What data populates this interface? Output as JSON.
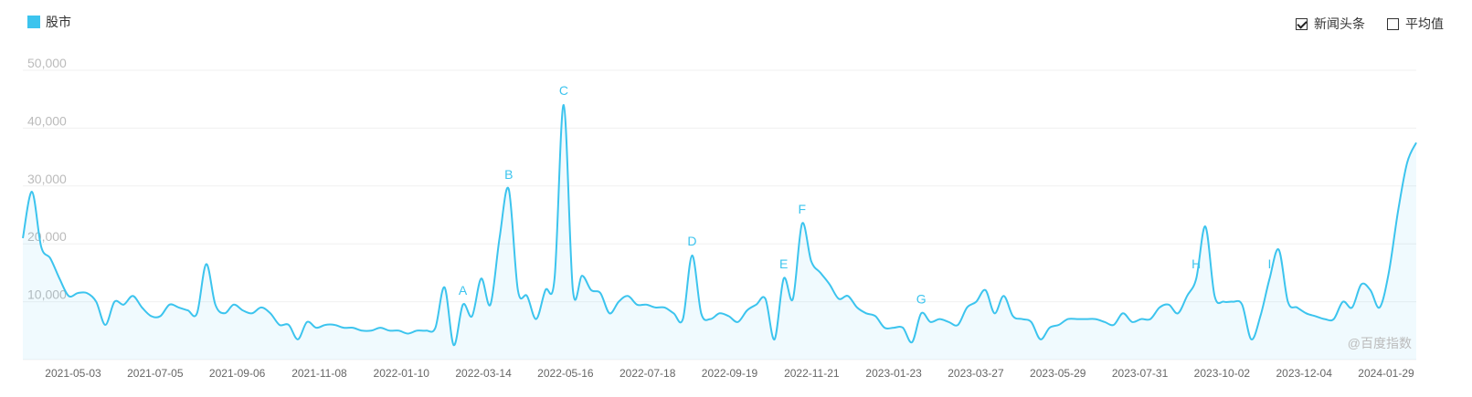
{
  "legend": {
    "label": "股市",
    "color": "#3cc4ee"
  },
  "options": [
    {
      "label": "新闻头条",
      "checked": true
    },
    {
      "label": "平均值",
      "checked": false
    }
  ],
  "watermark": "@百度指数",
  "chart_data": {
    "type": "area",
    "series": [
      {
        "name": "股市",
        "color": "#3cc4ee",
        "values": [
          21000,
          29000,
          19500,
          17500,
          14000,
          11000,
          11500,
          11500,
          10000,
          6000,
          10000,
          9500,
          11000,
          9000,
          7500,
          7500,
          9500,
          9000,
          8500,
          8000,
          16500,
          9500,
          8000,
          9500,
          8500,
          8000,
          9000,
          8000,
          6000,
          6000,
          3500,
          6500,
          5500,
          6000,
          6000,
          5500,
          5500,
          5000,
          5000,
          5500,
          5000,
          5000,
          4500,
          5000,
          5000,
          5500,
          12500,
          2500,
          9500,
          7500,
          14000,
          9500,
          21000,
          29500,
          12000,
          11000,
          7000,
          12000,
          14000,
          44000,
          12000,
          14500,
          12000,
          11500,
          8000,
          10000,
          11000,
          9500,
          9500,
          9000,
          9000,
          8000,
          7000,
          18000,
          8000,
          7000,
          8000,
          7500,
          6500,
          8500,
          9500,
          10500,
          3500,
          14000,
          10500,
          23500,
          17000,
          15000,
          13000,
          10500,
          11000,
          9000,
          8000,
          7500,
          5500,
          5500,
          5500,
          3000,
          8000,
          6500,
          7000,
          6500,
          6000,
          9000,
          10000,
          12000,
          8000,
          11000,
          7500,
          7000,
          6500,
          3500,
          5500,
          6000,
          7000,
          7000,
          7000,
          7000,
          6500,
          6000,
          8000,
          6500,
          7000,
          7000,
          9000,
          9500,
          8000,
          11000,
          14000,
          23000,
          11000,
          10000,
          10000,
          9500,
          3500,
          7500,
          14000,
          19000,
          10000,
          9000,
          8000,
          7500,
          7000,
          7000,
          10000,
          9000,
          13000,
          12000,
          9000,
          15000,
          25500,
          34000,
          37500
        ]
      }
    ],
    "x_ticks": [
      "2021-05-03",
      "2021-07-05",
      "2021-09-06",
      "2021-11-08",
      "2022-01-10",
      "2022-03-14",
      "2022-05-16",
      "2022-07-18",
      "2022-09-19",
      "2022-11-21",
      "2023-01-23",
      "2023-03-27",
      "2023-05-29",
      "2023-07-31",
      "2023-10-02",
      "2023-12-04",
      "2024-01-29"
    ],
    "y_ticks": [
      "10,000",
      "20,000",
      "30,000",
      "40,000",
      "50,000"
    ],
    "y_tick_values": [
      10000,
      20000,
      30000,
      40000,
      50000
    ],
    "ylim": [
      0,
      50000
    ],
    "annotations": [
      {
        "label": "A",
        "index": 48
      },
      {
        "label": "B",
        "index": 53
      },
      {
        "label": "C",
        "index": 59
      },
      {
        "label": "D",
        "index": 73
      },
      {
        "label": "E",
        "index": 83
      },
      {
        "label": "F",
        "index": 85
      },
      {
        "label": "G",
        "index": 98
      },
      {
        "label": "H",
        "index": 128
      },
      {
        "label": "I",
        "index": 136
      }
    ],
    "grid": true,
    "legend_position": "top-left"
  }
}
